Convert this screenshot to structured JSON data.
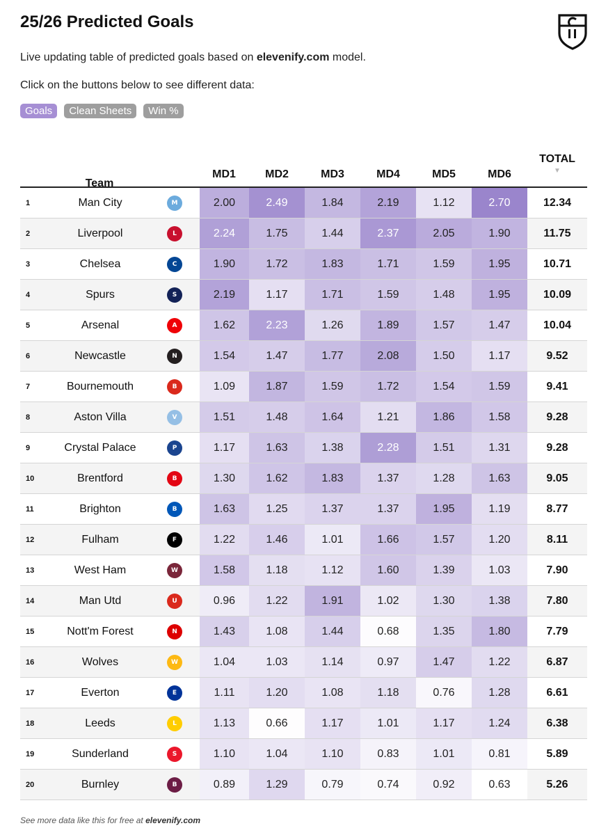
{
  "header": {
    "title": "25/26 Predicted Goals",
    "subtitle_pre": "Live updating table of predicted goals based on",
    "subtitle_site": "elevenify.com",
    "subtitle_post": "model.",
    "instructions": "Click on the buttons below to see different data:",
    "logo_icon": "elevenify-shield-logo-icon"
  },
  "buttons": [
    {
      "label": "Goals",
      "active": true
    },
    {
      "label": "Clean Sheets",
      "active": false
    },
    {
      "label": "Win %",
      "active": false
    }
  ],
  "table": {
    "team_header": "Team",
    "md_headers": [
      "MD1",
      "MD2",
      "MD3",
      "MD4",
      "MD5",
      "MD6"
    ],
    "total_header": "TOTAL",
    "sort_icon": "sort-down-triangle-icon",
    "rows": [
      {
        "rank": "1",
        "team": "Man City",
        "crest": "M",
        "crest_color": "#6CABDD",
        "values": [
          "2.00",
          "2.49",
          "1.84",
          "2.19",
          "1.12",
          "2.70"
        ],
        "total": "12.34"
      },
      {
        "rank": "2",
        "team": "Liverpool",
        "crest": "L",
        "crest_color": "#C8102E",
        "values": [
          "2.24",
          "1.75",
          "1.44",
          "2.37",
          "2.05",
          "1.90"
        ],
        "total": "11.75"
      },
      {
        "rank": "3",
        "team": "Chelsea",
        "crest": "C",
        "crest_color": "#034694",
        "values": [
          "1.90",
          "1.72",
          "1.83",
          "1.71",
          "1.59",
          "1.95"
        ],
        "total": "10.71"
      },
      {
        "rank": "4",
        "team": "Spurs",
        "crest": "S",
        "crest_color": "#132257",
        "values": [
          "2.19",
          "1.17",
          "1.71",
          "1.59",
          "1.48",
          "1.95"
        ],
        "total": "10.09"
      },
      {
        "rank": "5",
        "team": "Arsenal",
        "crest": "A",
        "crest_color": "#EF0107",
        "values": [
          "1.62",
          "2.23",
          "1.26",
          "1.89",
          "1.57",
          "1.47"
        ],
        "total": "10.04"
      },
      {
        "rank": "6",
        "team": "Newcastle",
        "crest": "N",
        "crest_color": "#241F20",
        "values": [
          "1.54",
          "1.47",
          "1.77",
          "2.08",
          "1.50",
          "1.17"
        ],
        "total": "9.52"
      },
      {
        "rank": "7",
        "team": "Bournemouth",
        "crest": "B",
        "crest_color": "#DA291C",
        "values": [
          "1.09",
          "1.87",
          "1.59",
          "1.72",
          "1.54",
          "1.59"
        ],
        "total": "9.41"
      },
      {
        "rank": "8",
        "team": "Aston Villa",
        "crest": "V",
        "crest_color": "#95BFE5",
        "values": [
          "1.51",
          "1.48",
          "1.64",
          "1.21",
          "1.86",
          "1.58"
        ],
        "total": "9.28"
      },
      {
        "rank": "9",
        "team": "Crystal Palace",
        "crest": "P",
        "crest_color": "#1B458F",
        "values": [
          "1.17",
          "1.63",
          "1.38",
          "2.28",
          "1.51",
          "1.31"
        ],
        "total": "9.28"
      },
      {
        "rank": "10",
        "team": "Brentford",
        "crest": "B",
        "crest_color": "#E30613",
        "values": [
          "1.30",
          "1.62",
          "1.83",
          "1.37",
          "1.28",
          "1.63"
        ],
        "total": "9.05"
      },
      {
        "rank": "11",
        "team": "Brighton",
        "crest": "B",
        "crest_color": "#0057B8",
        "values": [
          "1.63",
          "1.25",
          "1.37",
          "1.37",
          "1.95",
          "1.19"
        ],
        "total": "8.77"
      },
      {
        "rank": "12",
        "team": "Fulham",
        "crest": "F",
        "crest_color": "#000000",
        "values": [
          "1.22",
          "1.46",
          "1.01",
          "1.66",
          "1.57",
          "1.20"
        ],
        "total": "8.11"
      },
      {
        "rank": "13",
        "team": "West Ham",
        "crest": "W",
        "crest_color": "#7A263A",
        "values": [
          "1.58",
          "1.18",
          "1.12",
          "1.60",
          "1.39",
          "1.03"
        ],
        "total": "7.90"
      },
      {
        "rank": "14",
        "team": "Man Utd",
        "crest": "U",
        "crest_color": "#DA291C",
        "values": [
          "0.96",
          "1.22",
          "1.91",
          "1.02",
          "1.30",
          "1.38"
        ],
        "total": "7.80"
      },
      {
        "rank": "15",
        "team": "Nott'm Forest",
        "crest": "N",
        "crest_color": "#DD0000",
        "values": [
          "1.43",
          "1.08",
          "1.44",
          "0.68",
          "1.35",
          "1.80"
        ],
        "total": "7.79"
      },
      {
        "rank": "16",
        "team": "Wolves",
        "crest": "W",
        "crest_color": "#FDB913",
        "values": [
          "1.04",
          "1.03",
          "1.14",
          "0.97",
          "1.47",
          "1.22"
        ],
        "total": "6.87"
      },
      {
        "rank": "17",
        "team": "Everton",
        "crest": "E",
        "crest_color": "#003399",
        "values": [
          "1.11",
          "1.20",
          "1.08",
          "1.18",
          "0.76",
          "1.28"
        ],
        "total": "6.61"
      },
      {
        "rank": "18",
        "team": "Leeds",
        "crest": "L",
        "crest_color": "#FFCD00",
        "values": [
          "1.13",
          "0.66",
          "1.17",
          "1.01",
          "1.17",
          "1.24"
        ],
        "total": "6.38"
      },
      {
        "rank": "19",
        "team": "Sunderland",
        "crest": "S",
        "crest_color": "#EB172B",
        "values": [
          "1.10",
          "1.04",
          "1.10",
          "0.83",
          "1.01",
          "0.81"
        ],
        "total": "5.89"
      },
      {
        "rank": "20",
        "team": "Burnley",
        "crest": "B",
        "crest_color": "#6C1D45",
        "values": [
          "0.89",
          "1.29",
          "0.79",
          "0.74",
          "0.92",
          "0.63"
        ],
        "total": "5.26"
      }
    ]
  },
  "colors": {
    "accent": "#a68fd4",
    "button_inactive": "#9e9e9e",
    "heat_low": "#ffffff",
    "heat_high": "#9a85cc"
  },
  "footer": {
    "text_pre": "See more data like this for free at",
    "site": "elevenify.com"
  }
}
